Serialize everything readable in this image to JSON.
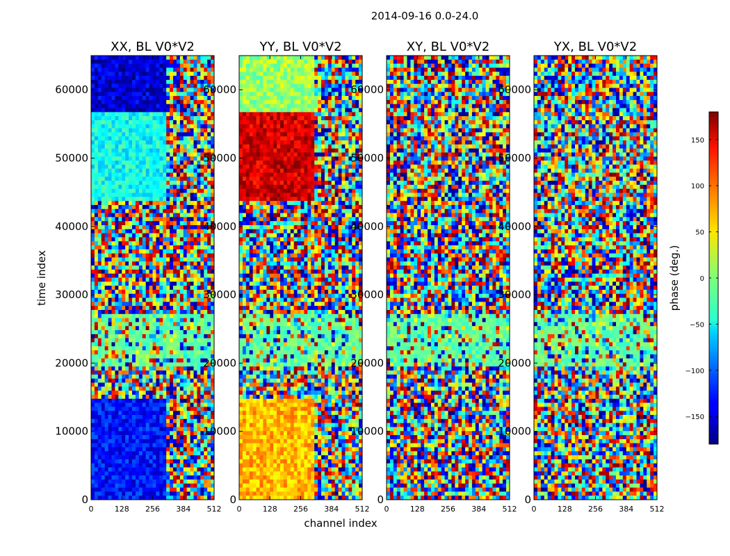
{
  "figure_title": "2014-09-16 0.0-24.0",
  "chart_data": [
    {
      "type": "heatmap",
      "title": "XX, BL V0*V2",
      "xlabel": "channel index",
      "ylabel": "time index",
      "xlim": [
        0,
        512
      ],
      "ylim": [
        0,
        65000
      ],
      "xticks": [
        0,
        128,
        256,
        384,
        512
      ],
      "yticks": [
        0,
        10000,
        20000,
        30000,
        40000,
        50000,
        60000
      ],
      "value_range": [
        -180,
        180
      ],
      "colormap": "jet"
    },
    {
      "type": "heatmap",
      "title": "YY, BL V0*V2",
      "xlabel": "channel index",
      "ylabel": "",
      "xlim": [
        0,
        512
      ],
      "ylim": [
        0,
        65000
      ],
      "xticks": [
        0,
        128,
        256,
        384,
        512
      ],
      "yticks": [
        0,
        10000,
        20000,
        30000,
        40000,
        50000,
        60000
      ],
      "value_range": [
        -180,
        180
      ],
      "colormap": "jet"
    },
    {
      "type": "heatmap",
      "title": "XY, BL V0*V2",
      "xlabel": "",
      "ylabel": "",
      "xlim": [
        0,
        512
      ],
      "ylim": [
        0,
        65000
      ],
      "xticks": [
        0,
        128,
        256,
        384,
        512
      ],
      "yticks": [
        0,
        10000,
        20000,
        30000,
        40000,
        50000,
        60000
      ],
      "value_range": [
        -180,
        180
      ],
      "colormap": "jet"
    },
    {
      "type": "heatmap",
      "title": "YX, BL V0*V2",
      "xlabel": "",
      "ylabel": "",
      "xlim": [
        0,
        512
      ],
      "ylim": [
        0,
        65000
      ],
      "xticks": [
        0,
        128,
        256,
        384,
        512
      ],
      "yticks": [
        0,
        10000,
        20000,
        30000,
        40000,
        50000,
        60000
      ],
      "value_range": [
        -180,
        180
      ],
      "colormap": "jet"
    }
  ],
  "colorbar": {
    "label": "phase (deg.)",
    "range": [
      -180,
      180
    ],
    "ticks": [
      -150,
      -100,
      -50,
      0,
      50,
      100,
      150
    ],
    "tick_labels": [
      "−150",
      "−100",
      "−50",
      "0",
      "50",
      "100",
      "150"
    ]
  }
}
